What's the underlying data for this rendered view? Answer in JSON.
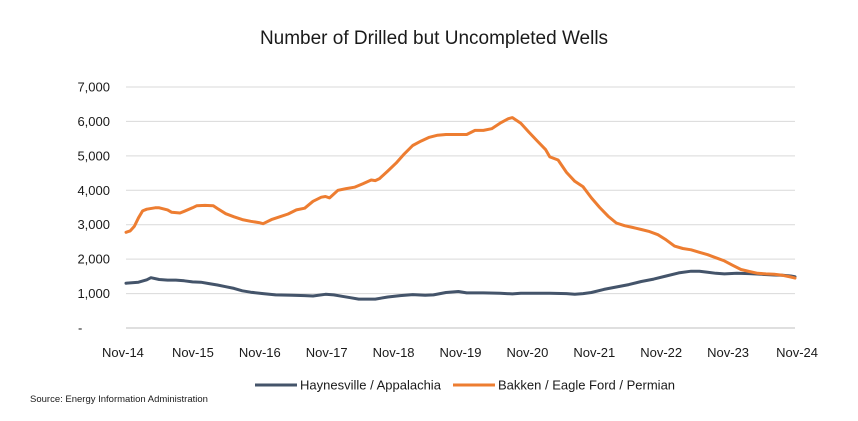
{
  "chart_data": {
    "type": "line",
    "title": "Number of Drilled but Uncompleted Wells",
    "xlabel": "",
    "ylabel": "",
    "ylim": [
      0,
      7000
    ],
    "yticks": [
      {
        "value": 0,
        "label": "-"
      },
      {
        "value": 1000,
        "label": "1,000"
      },
      {
        "value": 2000,
        "label": "2,000"
      },
      {
        "value": 3000,
        "label": "3,000"
      },
      {
        "value": 4000,
        "label": "4,000"
      },
      {
        "value": 5000,
        "label": "5,000"
      },
      {
        "value": 6000,
        "label": "6,000"
      },
      {
        "value": 7000,
        "label": "7,000"
      }
    ],
    "xticks": [
      "Nov-14",
      "Nov-15",
      "Nov-16",
      "Nov-17",
      "Nov-18",
      "Nov-19",
      "Nov-20",
      "Nov-21",
      "Nov-22",
      "Nov-23",
      "Nov-24"
    ],
    "grid": true,
    "legend_position": "bottom",
    "source": "Source: Energy Information Administration",
    "series": [
      {
        "name": "Haynesville / Appalachia",
        "color": "#44546A",
        "points": [
          [
            0,
            1300
          ],
          [
            3,
            1330
          ],
          [
            5,
            1400
          ],
          [
            6,
            1460
          ],
          [
            8,
            1410
          ],
          [
            10,
            1390
          ],
          [
            12,
            1390
          ],
          [
            14,
            1370
          ],
          [
            16,
            1340
          ],
          [
            18,
            1330
          ],
          [
            20,
            1290
          ],
          [
            22,
            1250
          ],
          [
            24,
            1200
          ],
          [
            26,
            1150
          ],
          [
            28,
            1080
          ],
          [
            30,
            1040
          ],
          [
            33,
            1000
          ],
          [
            36,
            960
          ],
          [
            40,
            950
          ],
          [
            43,
            940
          ],
          [
            45,
            930
          ],
          [
            48,
            980
          ],
          [
            50,
            960
          ],
          [
            52,
            920
          ],
          [
            54,
            880
          ],
          [
            56,
            840
          ],
          [
            60,
            840
          ],
          [
            63,
            900
          ],
          [
            66,
            940
          ],
          [
            69,
            970
          ],
          [
            72,
            950
          ],
          [
            74,
            960
          ],
          [
            77,
            1030
          ],
          [
            80,
            1060
          ],
          [
            82,
            1020
          ],
          [
            86,
            1020
          ],
          [
            90,
            1010
          ],
          [
            93,
            990
          ],
          [
            95,
            1010
          ],
          [
            98,
            1010
          ],
          [
            102,
            1010
          ],
          [
            106,
            1000
          ],
          [
            108,
            980
          ],
          [
            110,
            1000
          ],
          [
            112,
            1030
          ],
          [
            115,
            1120
          ],
          [
            118,
            1190
          ],
          [
            121,
            1260
          ],
          [
            124,
            1350
          ],
          [
            127,
            1420
          ],
          [
            130,
            1510
          ],
          [
            133,
            1600
          ],
          [
            136,
            1650
          ],
          [
            138,
            1650
          ],
          [
            140,
            1620
          ],
          [
            142,
            1590
          ],
          [
            144,
            1570
          ],
          [
            147,
            1590
          ],
          [
            150,
            1580
          ],
          [
            153,
            1560
          ],
          [
            156,
            1540
          ],
          [
            158,
            1530
          ],
          [
            160,
            1510
          ],
          [
            161,
            1490
          ]
        ]
      },
      {
        "name": "Bakken / Eagle Ford / Permian",
        "color": "#ED7D31",
        "points": [
          [
            0,
            2780
          ],
          [
            1,
            2820
          ],
          [
            2,
            2950
          ],
          [
            3,
            3200
          ],
          [
            4,
            3400
          ],
          [
            5,
            3450
          ],
          [
            7,
            3490
          ],
          [
            8,
            3490
          ],
          [
            10,
            3430
          ],
          [
            11,
            3360
          ],
          [
            13,
            3340
          ],
          [
            14,
            3390
          ],
          [
            16,
            3490
          ],
          [
            17,
            3550
          ],
          [
            19,
            3560
          ],
          [
            21,
            3550
          ],
          [
            22,
            3470
          ],
          [
            24,
            3320
          ],
          [
            26,
            3230
          ],
          [
            28,
            3150
          ],
          [
            30,
            3100
          ],
          [
            32,
            3060
          ],
          [
            33,
            3030
          ],
          [
            35,
            3150
          ],
          [
            37,
            3230
          ],
          [
            39,
            3310
          ],
          [
            41,
            3430
          ],
          [
            43,
            3480
          ],
          [
            45,
            3680
          ],
          [
            47,
            3800
          ],
          [
            48,
            3820
          ],
          [
            49,
            3780
          ],
          [
            51,
            4000
          ],
          [
            53,
            4050
          ],
          [
            55,
            4090
          ],
          [
            57,
            4190
          ],
          [
            59,
            4300
          ],
          [
            60,
            4280
          ],
          [
            61,
            4340
          ],
          [
            63,
            4560
          ],
          [
            65,
            4790
          ],
          [
            67,
            5060
          ],
          [
            69,
            5300
          ],
          [
            71,
            5430
          ],
          [
            73,
            5540
          ],
          [
            75,
            5600
          ],
          [
            77,
            5620
          ],
          [
            80,
            5620
          ],
          [
            82,
            5620
          ],
          [
            84,
            5740
          ],
          [
            86,
            5740
          ],
          [
            88,
            5790
          ],
          [
            90,
            5950
          ],
          [
            92,
            6080
          ],
          [
            93,
            6110
          ],
          [
            95,
            5950
          ],
          [
            97,
            5680
          ],
          [
            99,
            5430
          ],
          [
            101,
            5180
          ],
          [
            102,
            4970
          ],
          [
            104,
            4880
          ],
          [
            106,
            4520
          ],
          [
            108,
            4260
          ],
          [
            110,
            4100
          ],
          [
            112,
            3780
          ],
          [
            114,
            3500
          ],
          [
            116,
            3250
          ],
          [
            118,
            3050
          ],
          [
            120,
            2970
          ],
          [
            122,
            2920
          ],
          [
            124,
            2860
          ],
          [
            126,
            2800
          ],
          [
            128,
            2710
          ],
          [
            130,
            2560
          ],
          [
            132,
            2380
          ],
          [
            134,
            2310
          ],
          [
            136,
            2270
          ],
          [
            138,
            2200
          ],
          [
            140,
            2130
          ],
          [
            142,
            2040
          ],
          [
            144,
            1950
          ],
          [
            146,
            1820
          ],
          [
            148,
            1700
          ],
          [
            150,
            1640
          ],
          [
            152,
            1590
          ],
          [
            154,
            1570
          ],
          [
            156,
            1560
          ],
          [
            158,
            1530
          ],
          [
            160,
            1480
          ],
          [
            161,
            1450
          ]
        ]
      }
    ]
  }
}
